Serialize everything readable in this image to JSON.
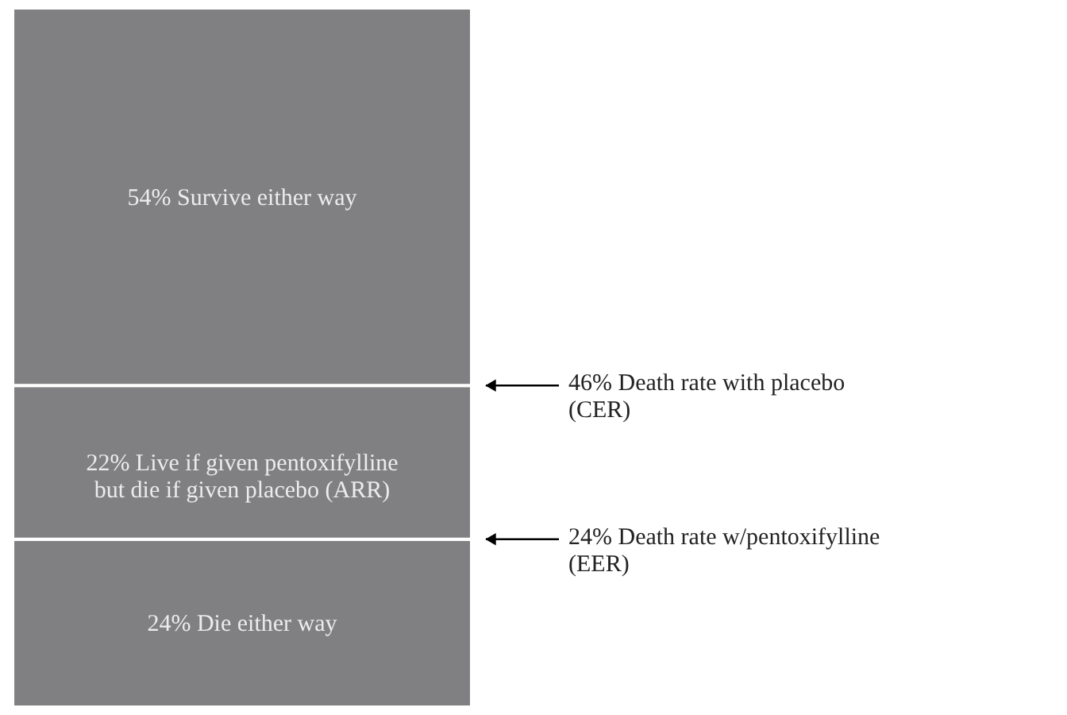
{
  "chart_data": {
    "type": "bar",
    "stacked": true,
    "categories": [
      null
    ],
    "ylim": [
      0,
      100
    ],
    "series": [
      {
        "color": "#808083",
        "values": [
          24
        ],
        "value_labels": [
          "24% Die either way"
        ]
      },
      {
        "color": "#808083",
        "values": [
          22
        ],
        "value_labels": [
          "22% Live if given pentoxifylline\nbut die if given placebo (ARR)"
        ]
      },
      {
        "color": "#808083",
        "values": [
          54
        ],
        "value_labels": [
          "54% Survive either way"
        ]
      }
    ],
    "annotations": [
      "46% Death rate with placebo\n(CER)",
      "24% Death rate w/pentoxifylline\n(EER)"
    ]
  }
}
